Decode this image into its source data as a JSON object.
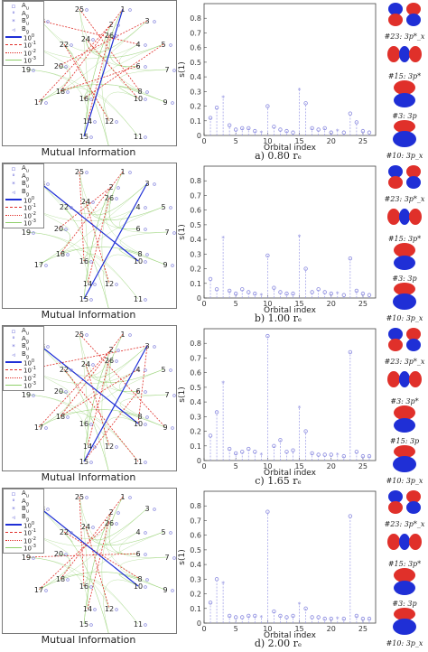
{
  "orbitals_list": [
    {
      "orbitals": [
        {
          "label": "#23: 3p*_x"
        },
        {
          "label": "#15: 3p*"
        },
        {
          "label": "#3: 3p"
        },
        {
          "label": "#10: 3p_x"
        }
      ]
    },
    {
      "orbitals": [
        {
          "label": "#23: 3p*_x"
        },
        {
          "label": "#15: 3p*"
        },
        {
          "label": "#3: 3p"
        },
        {
          "label": "#10: 3p_x"
        }
      ]
    },
    {
      "orbitals": [
        {
          "label": "#23: 3p*_x"
        },
        {
          "label": "#3: 3p*"
        },
        {
          "label": "#15: 3p"
        },
        {
          "label": "#10: 3p_x"
        }
      ]
    },
    {
      "orbitals": [
        {
          "label": "#23: 3p*_x"
        },
        {
          "label": "#15: 3p*"
        },
        {
          "label": "#3: 3p"
        },
        {
          "label": "#10: 3p_x"
        }
      ]
    }
  ],
  "mi_title": "Mutual Information",
  "legend": {
    "Au": "A",
    "Au_sub": "u",
    "Ag": "A",
    "Ag_sub": "g",
    "Bu": "B",
    "Bu_sub": "u",
    "Bg": "B",
    "Bg_sub": "g",
    "l0": "10",
    "l0_exp": "0",
    "l1": "10",
    "l1_exp": "-1",
    "l2": "10",
    "l2_exp": "-2",
    "l3": "10",
    "l3_exp": "-3"
  },
  "ring_labels": [
    "1",
    "2",
    "3",
    "4",
    "5",
    "6",
    "7",
    "8",
    "9",
    "10",
    "11",
    "12",
    "13",
    "14",
    "15",
    "16",
    "17",
    "18",
    "19",
    "20",
    "21",
    "22",
    "23",
    "24",
    "25",
    "26"
  ],
  "colors": {
    "blue_line": "#1f2fd6",
    "red_line": "#e0302a",
    "green_line": "#8fcf6a",
    "marker": "#8a8adf",
    "stem": "#9a9ae8"
  },
  "chart_data": [
    {
      "type": "scatter",
      "caption": "a) 0.80 r_e",
      "xlabel": "Orbital index",
      "ylabel": "s(1)",
      "xlim": [
        0,
        27
      ],
      "ylim": [
        0,
        0.9
      ],
      "xticks": [
        "0",
        "5",
        "10",
        "15",
        "20",
        "25"
      ],
      "yticks": [
        "0",
        "0.1",
        "0.2",
        "0.3",
        "0.4",
        "0.5",
        "0.6",
        "0.7",
        "0.8"
      ],
      "x": [
        1,
        2,
        3,
        4,
        5,
        6,
        7,
        8,
        9,
        10,
        11,
        12,
        13,
        14,
        15,
        16,
        17,
        18,
        19,
        20,
        21,
        22,
        23,
        24,
        25,
        26
      ],
      "y": [
        0.12,
        0.19,
        0.26,
        0.07,
        0.04,
        0.05,
        0.05,
        0.03,
        0.02,
        0.2,
        0.06,
        0.04,
        0.03,
        0.02,
        0.31,
        0.22,
        0.05,
        0.04,
        0.05,
        0.02,
        0.03,
        0.02,
        0.15,
        0.09,
        0.03,
        0.02
      ]
    },
    {
      "type": "scatter",
      "caption": "b) 1.00 r_e",
      "xlabel": "Orbital index",
      "ylabel": "s(1)",
      "xlim": [
        0,
        27
      ],
      "ylim": [
        0,
        0.9
      ],
      "xticks": [
        "0",
        "5",
        "10",
        "15",
        "20",
        "25"
      ],
      "yticks": [
        "0",
        "0.1",
        "0.2",
        "0.3",
        "0.4",
        "0.5",
        "0.6",
        "0.7",
        "0.8"
      ],
      "x": [
        1,
        2,
        3,
        4,
        5,
        6,
        7,
        8,
        9,
        10,
        11,
        12,
        13,
        14,
        15,
        16,
        17,
        18,
        19,
        20,
        21,
        22,
        23,
        24,
        25,
        26
      ],
      "y": [
        0.13,
        0.06,
        0.41,
        0.05,
        0.03,
        0.06,
        0.04,
        0.03,
        0.02,
        0.29,
        0.07,
        0.04,
        0.03,
        0.03,
        0.42,
        0.2,
        0.04,
        0.06,
        0.04,
        0.03,
        0.03,
        0.02,
        0.27,
        0.05,
        0.03,
        0.02
      ]
    },
    {
      "type": "scatter",
      "caption": "c) 1.65 r_e",
      "xlabel": "Orbital index",
      "ylabel": "s(1)",
      "xlim": [
        0,
        27
      ],
      "ylim": [
        0,
        0.9
      ],
      "xticks": [
        "0",
        "5",
        "10",
        "15",
        "20",
        "25"
      ],
      "yticks": [
        "0",
        "0.1",
        "0.2",
        "0.3",
        "0.4",
        "0.5",
        "0.6",
        "0.7",
        "0.8"
      ],
      "x": [
        1,
        2,
        3,
        4,
        5,
        6,
        7,
        8,
        9,
        10,
        11,
        12,
        13,
        14,
        15,
        16,
        17,
        18,
        19,
        20,
        21,
        22,
        23,
        24,
        25,
        26
      ],
      "y": [
        0.17,
        0.33,
        0.53,
        0.08,
        0.05,
        0.06,
        0.08,
        0.06,
        0.04,
        0.85,
        0.1,
        0.14,
        0.06,
        0.07,
        0.36,
        0.2,
        0.05,
        0.04,
        0.04,
        0.04,
        0.04,
        0.03,
        0.74,
        0.06,
        0.03,
        0.03
      ]
    },
    {
      "type": "scatter",
      "caption": "d) 2.00 r_e",
      "xlabel": "Orbital index",
      "ylabel": "s(1)",
      "xlim": [
        0,
        27
      ],
      "ylim": [
        0,
        0.9
      ],
      "xticks": [
        "0",
        "5",
        "10",
        "15",
        "20",
        "25"
      ],
      "yticks": [
        "0",
        "0.1",
        "0.2",
        "0.3",
        "0.4",
        "0.5",
        "0.6",
        "0.7",
        "0.8"
      ],
      "x": [
        1,
        2,
        3,
        4,
        5,
        6,
        7,
        8,
        9,
        10,
        11,
        12,
        13,
        14,
        15,
        16,
        17,
        18,
        19,
        20,
        21,
        22,
        23,
        24,
        25,
        26
      ],
      "y": [
        0.14,
        0.3,
        0.27,
        0.05,
        0.04,
        0.04,
        0.05,
        0.05,
        0.04,
        0.76,
        0.08,
        0.05,
        0.04,
        0.05,
        0.13,
        0.1,
        0.04,
        0.04,
        0.03,
        0.03,
        0.03,
        0.03,
        0.73,
        0.05,
        0.03,
        0.03
      ]
    }
  ]
}
